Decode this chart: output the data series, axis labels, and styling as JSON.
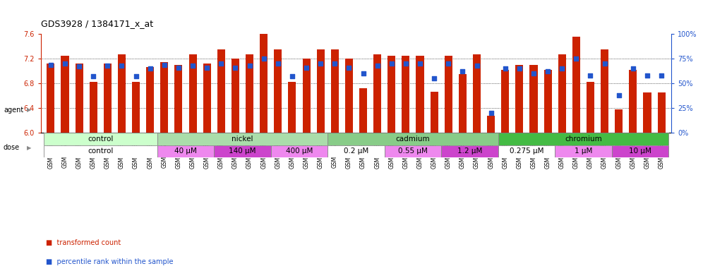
{
  "title": "GDS3928 / 1384171_x_at",
  "samples": [
    "GSM782280",
    "GSM782281",
    "GSM782291",
    "GSM782292",
    "GSM782302",
    "GSM782303",
    "GSM782313",
    "GSM782314",
    "GSM782282",
    "GSM782293",
    "GSM782304",
    "GSM782315",
    "GSM782283",
    "GSM782294",
    "GSM782305",
    "GSM782316",
    "GSM782284",
    "GSM782295",
    "GSM782306",
    "GSM782317",
    "GSM782288",
    "GSM782299",
    "GSM782310",
    "GSM782321",
    "GSM782289",
    "GSM782300",
    "GSM782311",
    "GSM782322",
    "GSM782290",
    "GSM782301",
    "GSM782312",
    "GSM782323",
    "GSM782285",
    "GSM782296",
    "GSM782307",
    "GSM782318",
    "GSM782286",
    "GSM782297",
    "GSM782308",
    "GSM782319",
    "GSM782287",
    "GSM782298",
    "GSM782309",
    "GSM782320"
  ],
  "bar_values": [
    7.12,
    7.25,
    7.12,
    6.83,
    7.12,
    7.27,
    6.83,
    7.07,
    7.14,
    7.1,
    7.27,
    7.12,
    7.35,
    7.2,
    7.27,
    7.62,
    7.35,
    6.83,
    7.2,
    7.35,
    7.35,
    7.2,
    6.72,
    7.27,
    7.25,
    7.25,
    7.25,
    6.67,
    7.25,
    6.95,
    7.27,
    6.28,
    7.02,
    7.1,
    7.1,
    7.02,
    7.27,
    7.55,
    6.83,
    7.35,
    6.38,
    7.02,
    6.65,
    6.65
  ],
  "percentile_values": [
    69,
    70,
    67,
    57,
    68,
    68,
    57,
    65,
    69,
    66,
    68,
    66,
    70,
    66,
    68,
    75,
    70,
    57,
    66,
    70,
    70,
    66,
    60,
    68,
    70,
    70,
    70,
    55,
    70,
    62,
    68,
    20,
    65,
    65,
    60,
    62,
    65,
    75,
    58,
    70,
    38,
    65,
    58,
    58
  ],
  "ylim_left": [
    6.0,
    7.6
  ],
  "ylim_right": [
    0,
    100
  ],
  "yticks_left": [
    6.0,
    6.4,
    6.8,
    7.2,
    7.6
  ],
  "yticks_right": [
    0,
    25,
    50,
    75,
    100
  ],
  "bar_color": "#cc2200",
  "dot_color": "#2255cc",
  "bg_color": "#ffffff",
  "groups": [
    {
      "label": "",
      "start": 0,
      "end": 7,
      "dose_label": "control",
      "dose_color": "#ffffff"
    },
    {
      "label": "",
      "start": 8,
      "end": 11,
      "dose_label": "40 μM",
      "dose_color": "#ee88ee"
    },
    {
      "label": "",
      "start": 12,
      "end": 15,
      "dose_label": "140 μM",
      "dose_color": "#cc44cc"
    },
    {
      "label": "",
      "start": 16,
      "end": 19,
      "dose_label": "400 μM",
      "dose_color": "#ee88ee"
    },
    {
      "label": "",
      "start": 20,
      "end": 23,
      "dose_label": "0.2 μM",
      "dose_color": "#ffffff"
    },
    {
      "label": "",
      "start": 24,
      "end": 27,
      "dose_label": "0.55 μM",
      "dose_color": "#ee88ee"
    },
    {
      "label": "",
      "start": 28,
      "end": 31,
      "dose_label": "1.2 μM",
      "dose_color": "#cc44cc"
    },
    {
      "label": "",
      "start": 32,
      "end": 35,
      "dose_label": "0.275 μM",
      "dose_color": "#ffffff"
    },
    {
      "label": "",
      "start": 36,
      "end": 39,
      "dose_label": "1 μM",
      "dose_color": "#ee88ee"
    },
    {
      "label": "",
      "start": 40,
      "end": 43,
      "dose_label": "10 μM",
      "dose_color": "#cc44cc"
    }
  ],
  "agent_spans": [
    {
      "label": "control",
      "start": 0,
      "end": 7,
      "color": "#ccffcc"
    },
    {
      "label": "nickel",
      "start": 8,
      "end": 19,
      "color": "#aaddaa"
    },
    {
      "label": "cadmium",
      "start": 20,
      "end": 31,
      "color": "#88cc88"
    },
    {
      "label": "chromium",
      "start": 32,
      "end": 43,
      "color": "#44bb44"
    }
  ],
  "left_axis_color": "#cc2200",
  "right_axis_color": "#2255cc",
  "title_fontsize": 9,
  "tick_fontsize": 7,
  "xtick_fontsize": 5.5,
  "label_fontsize": 7.5
}
